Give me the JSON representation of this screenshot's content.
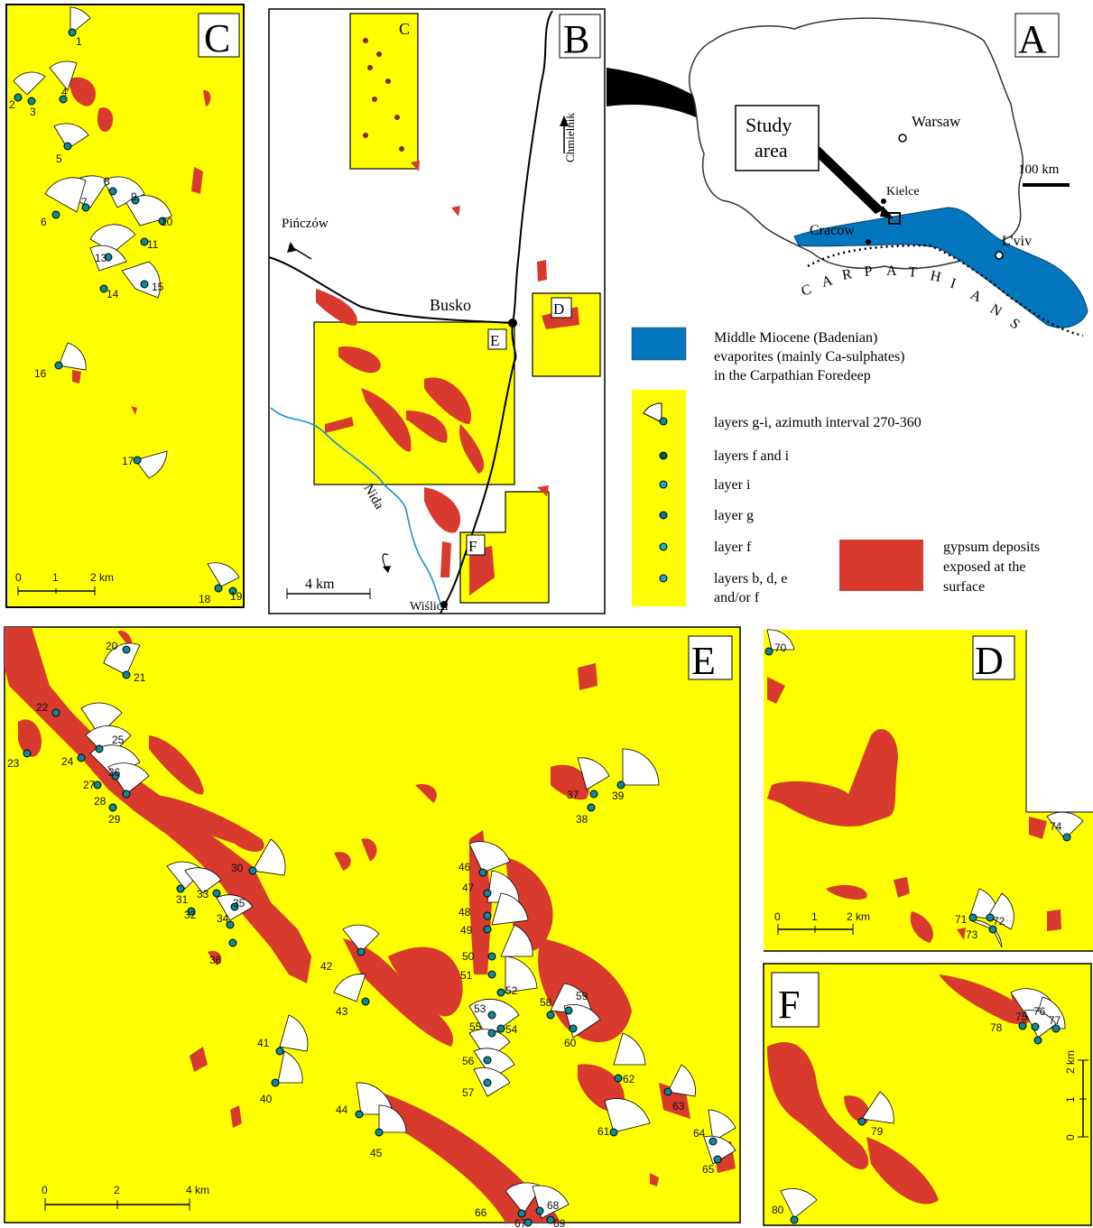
{
  "colors": {
    "yellow": "#ffff00",
    "gypsum_red": "#d83a2e",
    "evaporite_blue": "#0277bd",
    "river_blue": "#1a8fd6",
    "black": "#000000",
    "white": "#ffffff"
  },
  "panels": {
    "A": "A",
    "B": "B",
    "C": "C",
    "D": "D",
    "E": "E",
    "F": "F"
  },
  "map_a": {
    "study_area": "Study area",
    "warsaw": "Warsaw",
    "kielce": "Kielce",
    "cracow": "Cracow",
    "lviv": "L'viv",
    "carpathians": [
      "C",
      "A",
      "R",
      "P",
      "A",
      "T",
      "H",
      "I",
      "A",
      "N",
      "S"
    ],
    "scale": "100 km"
  },
  "map_b": {
    "chmielnik": "Chmielnik",
    "pinczow": "Pińczów",
    "busko": "Busko",
    "nida": "Nida",
    "wislica": "Wiślica",
    "scale": "4 km",
    "inset_c": "C",
    "inset_d": "D",
    "inset_e": "E",
    "inset_f": "F"
  },
  "legend": {
    "evaporites": [
      "Middle Miocene (Badenian)",
      "evaporites (mainly Ca-sulphates)",
      "in the Carpathian Foredeep"
    ],
    "gypsum": [
      "gypsum deposits",
      "exposed at the",
      "surface"
    ],
    "symbols": [
      {
        "text": "layers g-i, azimuth interval 270-360",
        "icon": "azimuth-fan-icon"
      },
      {
        "text": "layers f and i",
        "icon": "dot-icon"
      },
      {
        "text": "layer i",
        "icon": "dot-icon"
      },
      {
        "text": "layer g",
        "icon": "dot-icon"
      },
      {
        "text": "layer f",
        "icon": "dot-icon"
      },
      {
        "text": "layers b, d, e",
        "icon": "dot-icon",
        "extra": "and/or f"
      }
    ]
  },
  "scales": {
    "c": [
      "0",
      "1",
      "2 km"
    ],
    "d": [
      "0",
      "1",
      "2 km"
    ],
    "e": [
      "0",
      "2",
      "4 km"
    ],
    "f": [
      "0",
      "1",
      "2 km"
    ]
  },
  "sites_c": [
    "1",
    "2",
    "3",
    "4",
    "5",
    "6",
    "7",
    "8",
    "9",
    "10",
    "11",
    "13",
    "14",
    "15",
    "16",
    "17",
    "18",
    "19"
  ],
  "sites_e": [
    "20",
    "21",
    "22",
    "23",
    "24",
    "25",
    "26",
    "27",
    "28",
    "29",
    "30",
    "31",
    "32",
    "33",
    "34",
    "35",
    "36",
    "37",
    "38",
    "39",
    "40",
    "41",
    "42",
    "43",
    "44",
    "45",
    "46",
    "47",
    "48",
    "49",
    "50",
    "51",
    "52",
    "53",
    "54",
    "55",
    "56",
    "57",
    "58",
    "59",
    "60",
    "61",
    "62",
    "63",
    "64",
    "65",
    "66",
    "67",
    "68",
    "69"
  ],
  "sites_d": [
    "70",
    "71",
    "72",
    "73",
    "74"
  ],
  "sites_f": [
    "75",
    "76",
    "77",
    "78",
    "79",
    "80"
  ]
}
